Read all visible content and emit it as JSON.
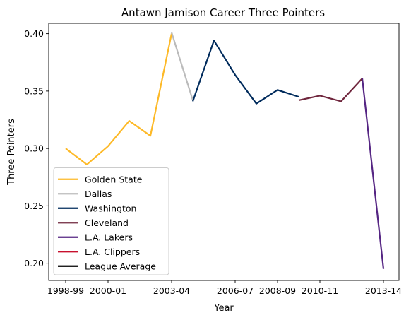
{
  "chart_data": {
    "type": "line",
    "title": "Antawn Jamison Career Three Pointers",
    "xlabel": "Year",
    "ylabel": "Three Pointers",
    "x_ticks": [
      "1998-99",
      "2000-01",
      "2003-04",
      "2006-07",
      "2008-09",
      "2010-11",
      "2013-14"
    ],
    "y_ticks": [
      "0.20",
      "0.25",
      "0.30",
      "0.35",
      "0.40"
    ],
    "ylim": [
      0.185,
      0.409
    ],
    "grid": false,
    "legend_position": "lower-left",
    "series": [
      {
        "name": "Golden State",
        "color": "#FDB927",
        "points": [
          [
            "1998-99",
            0.3
          ],
          [
            "1999-00",
            0.286
          ],
          [
            "2000-01",
            0.302
          ],
          [
            "2001-02",
            0.324
          ],
          [
            "2002-03",
            0.311
          ],
          [
            "2003-04",
            0.4
          ]
        ]
      },
      {
        "name": "Dallas",
        "color": "#BBBBBB",
        "points": [
          [
            "2003-04",
            0.401
          ],
          [
            "2004-05",
            0.342
          ]
        ]
      },
      {
        "name": "Washington",
        "color": "#002B5C",
        "points": [
          [
            "2004-05",
            0.341
          ],
          [
            "2005-06",
            0.394
          ],
          [
            "2006-07",
            0.364
          ],
          [
            "2007-08",
            0.339
          ],
          [
            "2008-09",
            0.351
          ],
          [
            "2009-10",
            0.345
          ]
        ]
      },
      {
        "name": "Cleveland",
        "color": "#6F263D",
        "points": [
          [
            "2009-10",
            0.342
          ],
          [
            "2010-11",
            0.346
          ],
          [
            "2011-12",
            0.341
          ],
          [
            "2012-13",
            0.361
          ]
        ]
      },
      {
        "name": "L.A. Lakers",
        "color": "#552583",
        "points": [
          [
            "2012-13",
            0.361
          ],
          [
            "2013-14",
            0.195
          ]
        ]
      },
      {
        "name": "L.A. Clippers",
        "color": "#C8102E",
        "points": []
      },
      {
        "name": "League Average",
        "color": "#000000",
        "points": []
      }
    ]
  }
}
